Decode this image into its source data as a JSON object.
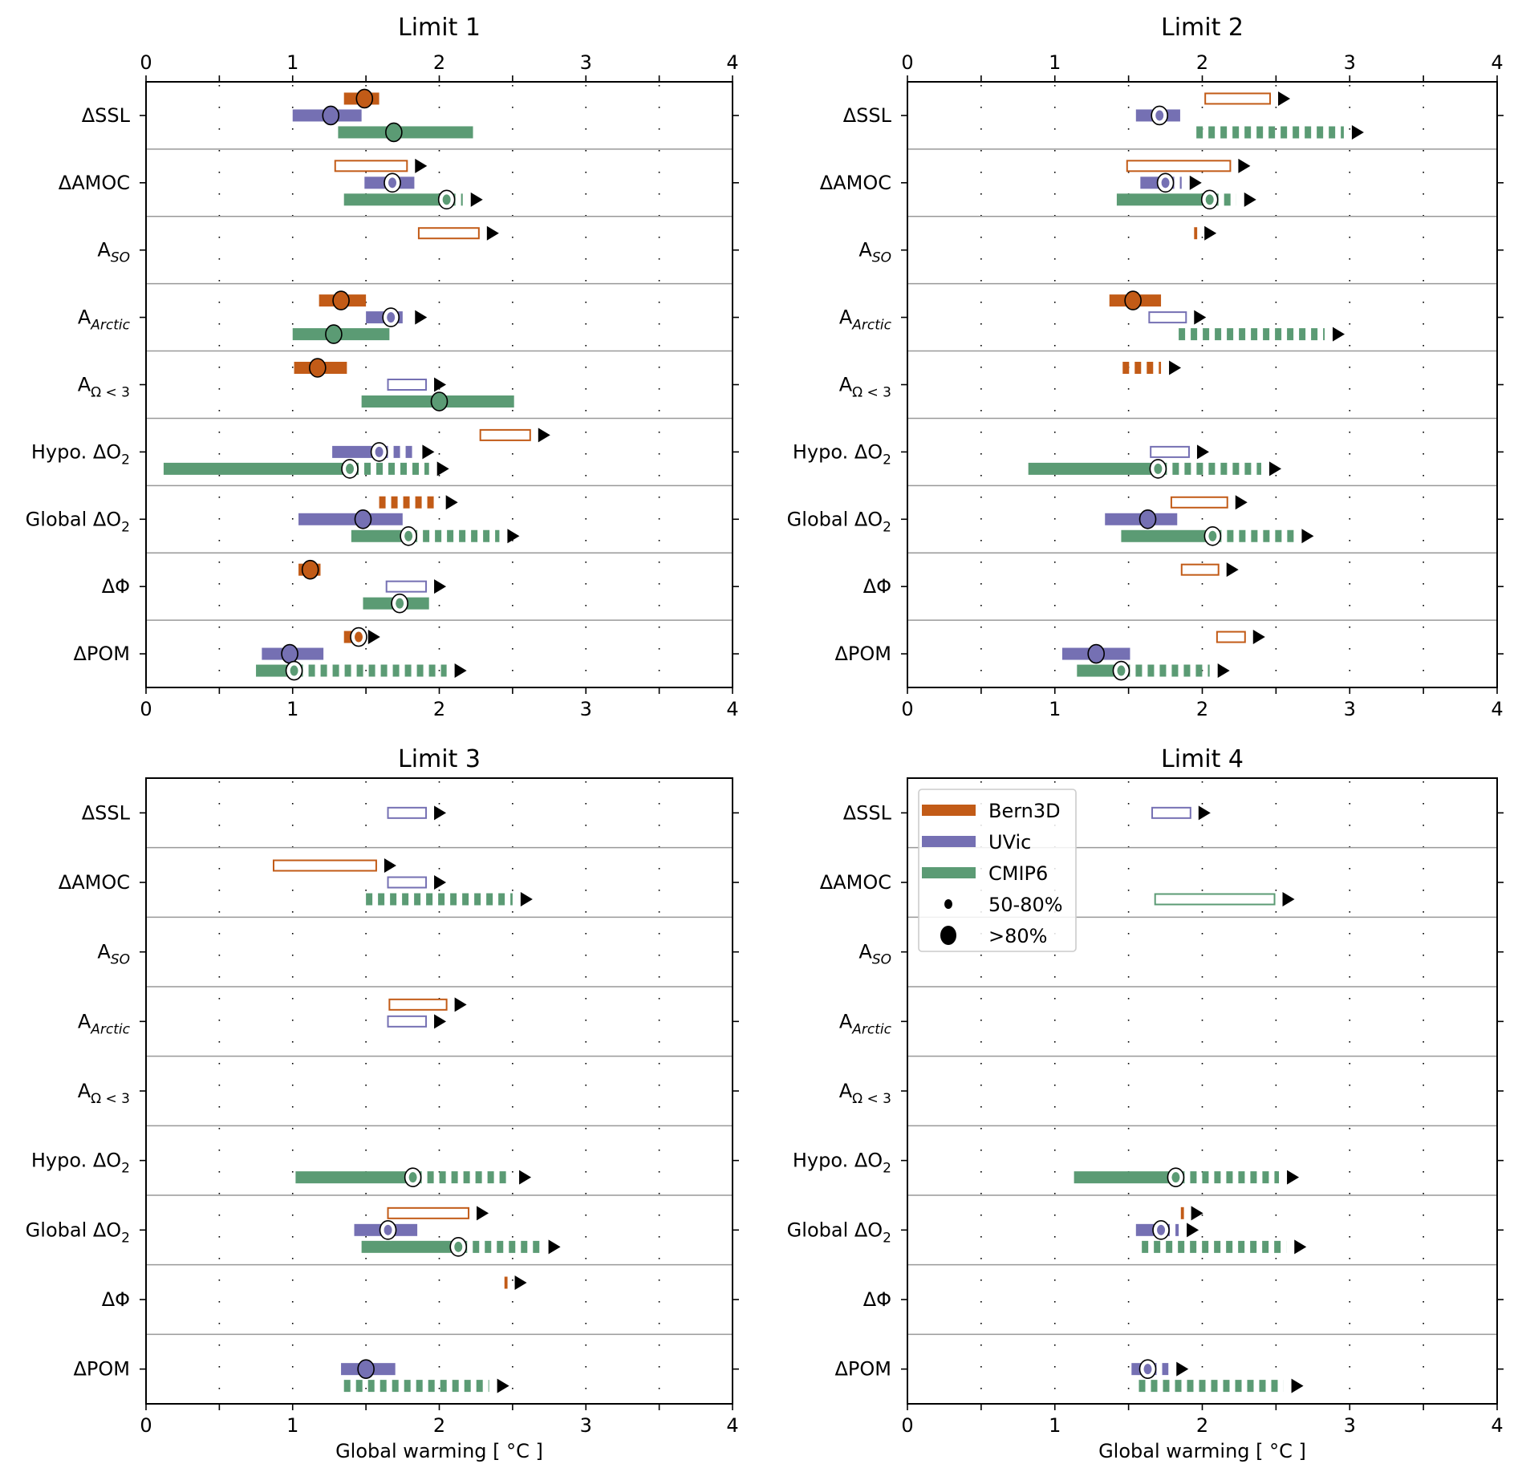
{
  "chart_data": {
    "type": "range-bar-panels",
    "xlabel": "Global warming [ °C ]",
    "xlim": [
      0,
      4
    ],
    "xticks": [
      "0",
      "1",
      "2",
      "3",
      "4"
    ],
    "minor_grid_step": 0.5,
    "grid": "dotted",
    "colors": {
      "Bern3D": "#c25b17",
      "UVic": "#7570b3",
      "CMIP6": "#5b9b74",
      "marker_edge": "#000000",
      "arrow": "#000000",
      "row_separator": "#999999"
    },
    "rows": [
      {
        "key": "SSL",
        "label": "ΔSSL",
        "sub": ""
      },
      {
        "key": "AMOC",
        "label": "ΔAMOC",
        "sub": ""
      },
      {
        "key": "SO",
        "label": "A",
        "sub": "SO",
        "sub_italic": true
      },
      {
        "key": "Arctic",
        "label": "A",
        "sub": "Arctic",
        "sub_italic": true
      },
      {
        "key": "Omega",
        "label": "A",
        "sub": "Ω < 3",
        "sub_italic": false
      },
      {
        "key": "HypoO2",
        "label": "Hypo. ΔO",
        "sub": "2",
        "sub_italic": false
      },
      {
        "key": "GlobO2",
        "label": "Global ΔO",
        "sub": "2",
        "sub_italic": false
      },
      {
        "key": "Phi",
        "label": "ΔΦ",
        "sub": ""
      },
      {
        "key": "POM",
        "label": "ΔPOM",
        "sub": ""
      }
    ],
    "series": [
      "Bern3D",
      "UVic",
      "CMIP6"
    ],
    "legend": {
      "panel": 3,
      "placement": "top-left",
      "entries": [
        {
          "label": "Bern3D",
          "kind": "bar",
          "series": "Bern3D"
        },
        {
          "label": "UVic",
          "kind": "bar",
          "series": "UVic"
        },
        {
          "label": "CMIP6",
          "kind": "bar",
          "series": "CMIP6"
        },
        {
          "label": "50-80%",
          "kind": "small-dot"
        },
        {
          "label": ">80%",
          "kind": "large-dot"
        }
      ]
    },
    "bar_style_notes": {
      "solid": "filled range",
      "open": "outlined range",
      "dashed": "dashed range",
      "arrow": "continues beyond range",
      "marker_large": ">80%",
      "marker_small": "50-80%"
    },
    "panels": [
      {
        "title": "Limit 1",
        "top_axis": true,
        "bottom_axis_label": false,
        "bars": [
          {
            "row": "SSL",
            "series": "Bern3D",
            "style": "solid",
            "start": 1.35,
            "end": 1.59,
            "marker": 1.49,
            "marker_type": "large",
            "arrow": false
          },
          {
            "row": "SSL",
            "series": "UVic",
            "style": "solid",
            "start": 1.0,
            "end": 1.47,
            "marker": 1.26,
            "marker_type": "large",
            "arrow": false
          },
          {
            "row": "SSL",
            "series": "CMIP6",
            "style": "solid",
            "start": 1.31,
            "end": 2.23,
            "marker": 1.69,
            "marker_type": "large",
            "arrow": false
          },
          {
            "row": "AMOC",
            "series": "Bern3D",
            "style": "open",
            "start": 1.29,
            "end": 1.78,
            "arrow": true
          },
          {
            "row": "AMOC",
            "series": "UVic",
            "style": "solid",
            "start": 1.49,
            "end": 1.83,
            "marker": 1.68,
            "marker_type": "small",
            "arrow": false
          },
          {
            "row": "AMOC",
            "series": "CMIP6",
            "style": "solid",
            "start": 1.35,
            "end": 2.05,
            "dashed_end": 2.16,
            "marker": 2.05,
            "marker_type": "small",
            "arrow": true
          },
          {
            "row": "SO",
            "series": "Bern3D",
            "style": "open",
            "start": 1.86,
            "end": 2.27,
            "arrow": true
          },
          {
            "row": "Arctic",
            "series": "Bern3D",
            "style": "solid",
            "start": 1.18,
            "end": 1.5,
            "marker": 1.33,
            "marker_type": "large",
            "arrow": false
          },
          {
            "row": "Arctic",
            "series": "UVic",
            "style": "solid",
            "start": 1.5,
            "end": 1.69,
            "dashed_end": 1.78,
            "marker": 1.67,
            "marker_type": "small",
            "arrow": true
          },
          {
            "row": "Arctic",
            "series": "CMIP6",
            "style": "solid",
            "start": 1.0,
            "end": 1.66,
            "marker": 1.28,
            "marker_type": "large",
            "arrow": false
          },
          {
            "row": "Omega",
            "series": "Bern3D",
            "style": "solid",
            "start": 1.01,
            "end": 1.37,
            "marker": 1.17,
            "marker_type": "large",
            "arrow": false
          },
          {
            "row": "Omega",
            "series": "UVic",
            "style": "open",
            "start": 1.65,
            "end": 1.91,
            "arrow": true
          },
          {
            "row": "Omega",
            "series": "CMIP6",
            "style": "solid",
            "start": 1.47,
            "end": 2.51,
            "marker": 2.0,
            "marker_type": "large",
            "arrow": false
          },
          {
            "row": "HypoO2",
            "series": "Bern3D",
            "style": "open",
            "start": 2.28,
            "end": 2.62,
            "arrow": true
          },
          {
            "row": "HypoO2",
            "series": "UVic",
            "style": "solid",
            "start": 1.27,
            "end": 1.59,
            "dashed_end": 1.83,
            "marker": 1.59,
            "marker_type": "small",
            "arrow": true
          },
          {
            "row": "HypoO2",
            "series": "CMIP6",
            "style": "solid",
            "start": 0.12,
            "end": 1.39,
            "dashed_end": 1.93,
            "marker": 1.39,
            "marker_type": "small",
            "arrow": true
          },
          {
            "row": "GlobO2",
            "series": "Bern3D",
            "style": "dashed",
            "start": 1.59,
            "end": 1.99,
            "arrow": true
          },
          {
            "row": "GlobO2",
            "series": "UVic",
            "style": "solid",
            "start": 1.04,
            "end": 1.75,
            "marker": 1.48,
            "marker_type": "large",
            "arrow": false
          },
          {
            "row": "GlobO2",
            "series": "CMIP6",
            "style": "solid",
            "start": 1.4,
            "end": 1.79,
            "dashed_end": 2.41,
            "marker": 1.79,
            "marker_type": "small",
            "arrow": true
          },
          {
            "row": "Phi",
            "series": "Bern3D",
            "style": "solid",
            "start": 1.04,
            "end": 1.19,
            "marker": 1.12,
            "marker_type": "large",
            "arrow": false
          },
          {
            "row": "Phi",
            "series": "UVic",
            "style": "open",
            "start": 1.64,
            "end": 1.91,
            "arrow": true
          },
          {
            "row": "Phi",
            "series": "CMIP6",
            "style": "solid",
            "start": 1.48,
            "end": 1.93,
            "marker": 1.73,
            "marker_type": "small",
            "arrow": false
          },
          {
            "row": "POM",
            "series": "Bern3D",
            "style": "solid",
            "start": 1.35,
            "end": 1.46,
            "marker": 1.45,
            "marker_type": "small",
            "arrow": true
          },
          {
            "row": "POM",
            "series": "UVic",
            "style": "solid",
            "start": 0.79,
            "end": 1.21,
            "marker": 0.98,
            "marker_type": "large",
            "arrow": false
          },
          {
            "row": "POM",
            "series": "CMIP6",
            "style": "solid",
            "start": 0.75,
            "end": 1.01,
            "dashed_end": 2.05,
            "marker": 1.01,
            "marker_type": "small",
            "arrow": true
          }
        ]
      },
      {
        "title": "Limit 2",
        "top_axis": true,
        "bottom_axis_label": false,
        "bars": [
          {
            "row": "SSL",
            "series": "Bern3D",
            "style": "open",
            "start": 2.02,
            "end": 2.46,
            "arrow": true
          },
          {
            "row": "SSL",
            "series": "UVic",
            "style": "solid",
            "start": 1.55,
            "end": 1.85,
            "marker": 1.71,
            "marker_type": "small",
            "arrow": false
          },
          {
            "row": "SSL",
            "series": "CMIP6",
            "style": "dashed",
            "start": 1.96,
            "end": 2.96,
            "arrow": true
          },
          {
            "row": "AMOC",
            "series": "Bern3D",
            "style": "open",
            "start": 1.49,
            "end": 2.19,
            "arrow": true
          },
          {
            "row": "AMOC",
            "series": "UVic",
            "style": "solid",
            "start": 1.58,
            "end": 1.75,
            "dashed_end": 1.86,
            "marker": 1.75,
            "marker_type": "small",
            "arrow": true
          },
          {
            "row": "AMOC",
            "series": "CMIP6",
            "style": "solid",
            "start": 1.42,
            "end": 2.05,
            "dashed_end": 2.23,
            "marker": 2.05,
            "marker_type": "small",
            "arrow": true
          },
          {
            "row": "SO",
            "series": "Bern3D",
            "style": "open",
            "start": 1.95,
            "end": 1.96,
            "arrow": true
          },
          {
            "row": "Arctic",
            "series": "Bern3D",
            "style": "solid",
            "start": 1.37,
            "end": 1.72,
            "marker": 1.53,
            "marker_type": "large",
            "arrow": false
          },
          {
            "row": "Arctic",
            "series": "UVic",
            "style": "open",
            "start": 1.64,
            "end": 1.89,
            "arrow": true
          },
          {
            "row": "Arctic",
            "series": "CMIP6",
            "style": "dashed",
            "start": 1.84,
            "end": 2.83,
            "arrow": true
          },
          {
            "row": "Omega",
            "series": "Bern3D",
            "style": "dashed",
            "start": 1.46,
            "end": 1.72,
            "arrow": true
          },
          {
            "row": "HypoO2",
            "series": "UVic",
            "style": "open",
            "start": 1.65,
            "end": 1.91,
            "arrow": true
          },
          {
            "row": "HypoO2",
            "series": "CMIP6",
            "style": "solid",
            "start": 0.82,
            "end": 1.7,
            "dashed_end": 2.4,
            "marker": 1.7,
            "marker_type": "small",
            "arrow": true
          },
          {
            "row": "GlobO2",
            "series": "Bern3D",
            "style": "open",
            "start": 1.79,
            "end": 2.17,
            "arrow": true
          },
          {
            "row": "GlobO2",
            "series": "UVic",
            "style": "solid",
            "start": 1.34,
            "end": 1.83,
            "marker": 1.63,
            "marker_type": "large",
            "arrow": false
          },
          {
            "row": "GlobO2",
            "series": "CMIP6",
            "style": "solid",
            "start": 1.45,
            "end": 2.07,
            "dashed_end": 2.62,
            "marker": 2.07,
            "marker_type": "small",
            "arrow": true
          },
          {
            "row": "Phi",
            "series": "Bern3D",
            "style": "open",
            "start": 1.86,
            "end": 2.11,
            "arrow": true
          },
          {
            "row": "POM",
            "series": "Bern3D",
            "style": "open",
            "start": 2.1,
            "end": 2.29,
            "arrow": true
          },
          {
            "row": "POM",
            "series": "UVic",
            "style": "solid",
            "start": 1.05,
            "end": 1.51,
            "marker": 1.28,
            "marker_type": "large",
            "arrow": false
          },
          {
            "row": "POM",
            "series": "CMIP6",
            "style": "solid",
            "start": 1.15,
            "end": 1.45,
            "dashed_end": 2.05,
            "marker": 1.45,
            "marker_type": "small",
            "arrow": true
          }
        ]
      },
      {
        "title": "Limit 3",
        "top_axis": false,
        "bottom_axis_label": true,
        "bars": [
          {
            "row": "SSL",
            "series": "UVic",
            "style": "open",
            "start": 1.65,
            "end": 1.91,
            "arrow": true
          },
          {
            "row": "AMOC",
            "series": "Bern3D",
            "style": "open",
            "start": 0.87,
            "end": 1.57,
            "arrow": true
          },
          {
            "row": "AMOC",
            "series": "UVic",
            "style": "open",
            "start": 1.65,
            "end": 1.91,
            "arrow": true
          },
          {
            "row": "AMOC",
            "series": "CMIP6",
            "style": "dashed",
            "start": 1.5,
            "end": 2.5,
            "arrow": true
          },
          {
            "row": "Arctic",
            "series": "Bern3D",
            "style": "open",
            "start": 1.66,
            "end": 2.05,
            "arrow": true
          },
          {
            "row": "Arctic",
            "series": "UVic",
            "style": "open",
            "start": 1.65,
            "end": 1.91,
            "arrow": true
          },
          {
            "row": "HypoO2",
            "series": "CMIP6",
            "style": "solid",
            "start": 1.02,
            "end": 1.82,
            "dashed_end": 2.49,
            "marker": 1.82,
            "marker_type": "small",
            "arrow": true
          },
          {
            "row": "GlobO2",
            "series": "Bern3D",
            "style": "open",
            "start": 1.65,
            "end": 2.2,
            "arrow": true
          },
          {
            "row": "GlobO2",
            "series": "UVic",
            "style": "solid",
            "start": 1.42,
            "end": 1.85,
            "marker": 1.65,
            "marker_type": "small",
            "arrow": false
          },
          {
            "row": "GlobO2",
            "series": "CMIP6",
            "style": "solid",
            "start": 1.47,
            "end": 2.13,
            "dashed_end": 2.69,
            "marker": 2.13,
            "marker_type": "small",
            "arrow": true
          },
          {
            "row": "Phi",
            "series": "Bern3D",
            "style": "open",
            "start": 2.45,
            "end": 2.46,
            "arrow": true
          },
          {
            "row": "POM",
            "series": "UVic",
            "style": "solid",
            "start": 1.33,
            "end": 1.7,
            "marker": 1.5,
            "marker_type": "large",
            "arrow": false
          },
          {
            "row": "POM",
            "series": "CMIP6",
            "style": "dashed",
            "start": 1.35,
            "end": 2.34,
            "arrow": true
          }
        ]
      },
      {
        "title": "Limit 4",
        "top_axis": false,
        "bottom_axis_label": true,
        "bars": [
          {
            "row": "SSL",
            "series": "UVic",
            "style": "open",
            "start": 1.66,
            "end": 1.92,
            "arrow": true
          },
          {
            "row": "AMOC",
            "series": "CMIP6",
            "style": "open",
            "start": 1.68,
            "end": 2.49,
            "arrow": true
          },
          {
            "row": "HypoO2",
            "series": "CMIP6",
            "style": "solid",
            "start": 1.13,
            "end": 1.82,
            "dashed_end": 2.52,
            "marker": 1.82,
            "marker_type": "small",
            "arrow": true
          },
          {
            "row": "GlobO2",
            "series": "Bern3D",
            "style": "open",
            "start": 1.86,
            "end": 1.87,
            "arrow": true
          },
          {
            "row": "GlobO2",
            "series": "UVic",
            "style": "solid",
            "start": 1.55,
            "end": 1.72,
            "dashed_end": 1.84,
            "marker": 1.72,
            "marker_type": "small",
            "arrow": true
          },
          {
            "row": "GlobO2",
            "series": "CMIP6",
            "style": "dashed",
            "start": 1.59,
            "end": 2.57,
            "arrow": true
          },
          {
            "row": "POM",
            "series": "UVic",
            "style": "solid",
            "start": 1.52,
            "end": 1.63,
            "dashed_end": 1.77,
            "marker": 1.63,
            "marker_type": "small",
            "arrow": true
          },
          {
            "row": "POM",
            "series": "CMIP6",
            "style": "dashed",
            "start": 1.57,
            "end": 2.55,
            "arrow": true
          }
        ]
      }
    ]
  }
}
